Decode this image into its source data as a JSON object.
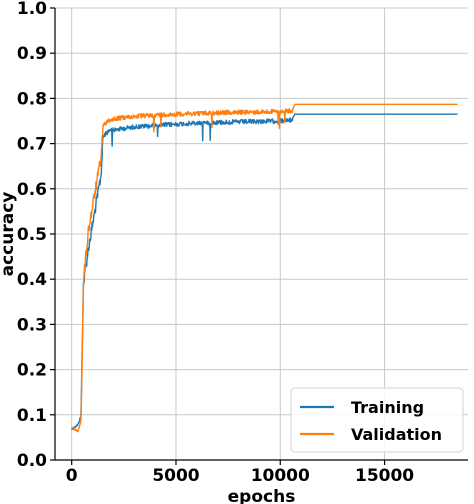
{
  "chart_data": {
    "type": "line",
    "title": "",
    "xlabel": "epochs",
    "ylabel": "accuracy",
    "xlim": [
      -800,
      19000
    ],
    "ylim": [
      0.0,
      1.0
    ],
    "xticks": [
      0,
      5000,
      10000,
      15000
    ],
    "yticks": [
      0.0,
      0.1,
      0.2,
      0.3,
      0.4,
      0.5,
      0.6,
      0.7,
      0.8,
      0.9,
      1.0
    ],
    "xtick_labels": [
      "0",
      "5000",
      "10000",
      "15000"
    ],
    "ytick_labels": [
      "0.0",
      "0.1",
      "0.2",
      "0.3",
      "0.4",
      "0.5",
      "0.6",
      "0.7",
      "0.8",
      "0.9",
      "1.0"
    ],
    "grid": true,
    "legend_position": "bottom-right",
    "series": [
      {
        "name": "Training",
        "color": "#1f77b4",
        "points": [
          [
            0,
            0.07
          ],
          [
            150,
            0.075
          ],
          [
            300,
            0.08
          ],
          [
            450,
            0.1
          ],
          [
            500,
            0.25
          ],
          [
            560,
            0.4
          ],
          [
            650,
            0.43
          ],
          [
            800,
            0.48
          ],
          [
            950,
            0.52
          ],
          [
            1100,
            0.56
          ],
          [
            1250,
            0.6
          ],
          [
            1400,
            0.64
          ],
          [
            1500,
            0.72
          ],
          [
            1700,
            0.73
          ],
          [
            2000,
            0.735
          ],
          [
            3000,
            0.742
          ],
          [
            4000,
            0.745
          ],
          [
            5000,
            0.748
          ],
          [
            6000,
            0.75
          ],
          [
            7000,
            0.752
          ],
          [
            8000,
            0.753
          ],
          [
            9000,
            0.754
          ],
          [
            10000,
            0.755
          ],
          [
            10600,
            0.757
          ],
          [
            10700,
            0.765
          ],
          [
            12000,
            0.765
          ],
          [
            15000,
            0.765
          ],
          [
            18500,
            0.765
          ]
        ],
        "noisy_until": 10600
      },
      {
        "name": "Validation",
        "color": "#ff7f0e",
        "points": [
          [
            0,
            0.075
          ],
          [
            150,
            0.07
          ],
          [
            300,
            0.065
          ],
          [
            450,
            0.09
          ],
          [
            500,
            0.22
          ],
          [
            560,
            0.4
          ],
          [
            650,
            0.45
          ],
          [
            800,
            0.52
          ],
          [
            950,
            0.56
          ],
          [
            1100,
            0.6
          ],
          [
            1250,
            0.64
          ],
          [
            1400,
            0.68
          ],
          [
            1500,
            0.745
          ],
          [
            1700,
            0.755
          ],
          [
            2000,
            0.76
          ],
          [
            3000,
            0.765
          ],
          [
            4000,
            0.768
          ],
          [
            5000,
            0.77
          ],
          [
            6000,
            0.772
          ],
          [
            7000,
            0.773
          ],
          [
            8000,
            0.774
          ],
          [
            9000,
            0.775
          ],
          [
            10000,
            0.776
          ],
          [
            10600,
            0.777
          ],
          [
            10700,
            0.787
          ],
          [
            12000,
            0.787
          ],
          [
            15000,
            0.787
          ],
          [
            18500,
            0.787
          ]
        ],
        "noisy_until": 10600
      }
    ]
  }
}
